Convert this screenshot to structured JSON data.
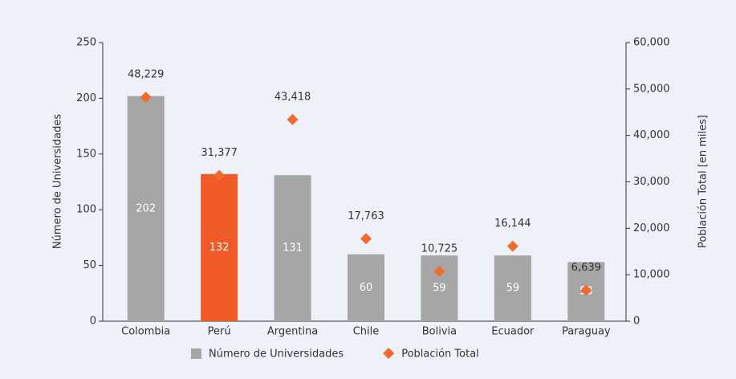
{
  "chart_data": {
    "type": "bar",
    "categories": [
      "Colombia",
      "Perú",
      "Argentina",
      "Chile",
      "Bolivia",
      "Ecuador",
      "Paraguay"
    ],
    "ylabel": "Número de Universidades",
    "y2label": "Población Total [en miles]",
    "ylim": [
      0,
      250
    ],
    "yticks": [
      0,
      50,
      100,
      150,
      200,
      250
    ],
    "y2lim": [
      0,
      60000
    ],
    "y2ticks": [
      0,
      {
        "value": 10000,
        "label": "10,000"
      },
      {
        "value": 20000,
        "label": "20,000"
      },
      {
        "value": 30000,
        "label": "30,000"
      },
      {
        "value": 40000,
        "label": "40,000"
      },
      {
        "value": 50000,
        "label": "50,000"
      },
      {
        "value": 60000,
        "label": "60,000"
      }
    ],
    "grid": false,
    "legend": "bottom",
    "series": [
      {
        "name": "Número de Universidades",
        "type": "bar",
        "color": "#a6a6a6",
        "colors": [
          "#a6a6a6",
          "#f05a28",
          "#a6a6a6",
          "#a6a6a6",
          "#a6a6a6",
          "#a6a6a6",
          "#a6a6a6"
        ],
        "values": [
          202,
          132,
          131,
          60,
          59,
          59,
          53
        ]
      },
      {
        "name": "Población Total",
        "type": "scatter",
        "axis": "y2",
        "color": "#f26a2e",
        "values": [
          48229,
          31377,
          43418,
          17763,
          10725,
          16144,
          6639
        ],
        "value_labels": [
          "48,229",
          "31,377",
          "43,418",
          "17,763",
          "10,725",
          "16,144",
          "6,639"
        ]
      }
    ]
  }
}
